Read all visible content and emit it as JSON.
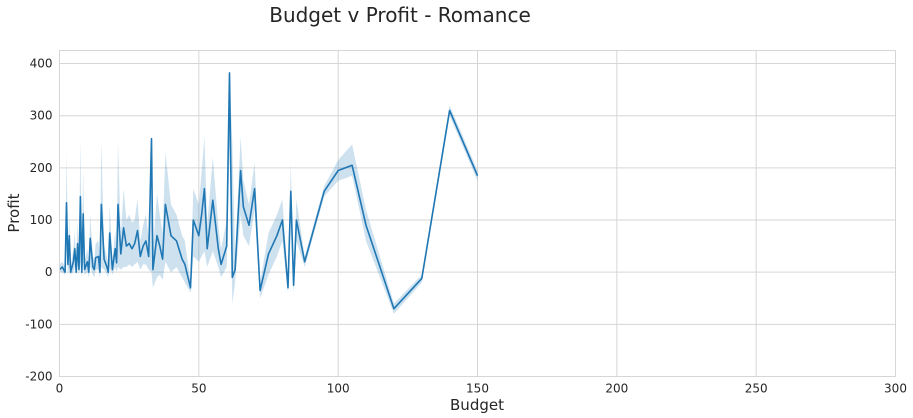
{
  "chart_data": {
    "type": "line",
    "title": "Budget v Profit - Romance",
    "xlabel": "Budget",
    "ylabel": "Profit",
    "xlim": [
      0,
      300
    ],
    "ylim": [
      -200,
      425
    ],
    "xticks": [
      0,
      50,
      100,
      150,
      200,
      250,
      300
    ],
    "yticks": [
      -200,
      -100,
      0,
      100,
      200,
      300,
      400
    ],
    "grid": true,
    "colors": {
      "line": "#1f77b4",
      "band": "#1f77b4"
    },
    "series": [
      {
        "name": "Profit",
        "x": [
          0,
          1,
          2,
          2.5,
          3,
          3.5,
          4,
          5,
          5.5,
          6,
          6.5,
          7,
          7.5,
          8,
          8.5,
          9,
          10,
          10.5,
          11,
          12,
          12.5,
          13,
          14,
          14.5,
          15,
          16,
          17,
          17.5,
          18,
          19,
          20,
          20.5,
          21,
          22,
          23,
          24,
          25,
          26,
          27,
          28,
          29,
          30,
          31,
          32,
          33,
          33.5,
          35,
          36,
          37,
          38,
          40,
          42,
          44,
          45,
          47,
          48,
          50,
          51,
          52,
          53,
          55,
          57,
          58,
          60,
          61,
          62,
          63,
          65,
          66,
          68,
          70,
          72,
          75,
          78,
          80,
          82,
          83,
          84,
          85,
          88,
          95,
          100,
          105,
          110,
          120,
          130,
          140,
          150
        ],
        "y": [
          5,
          10,
          0,
          133,
          15,
          70,
          0,
          20,
          45,
          0,
          55,
          5,
          145,
          0,
          112,
          5,
          20,
          0,
          65,
          10,
          5,
          28,
          30,
          0,
          130,
          25,
          10,
          0,
          75,
          5,
          45,
          18,
          130,
          35,
          85,
          50,
          55,
          45,
          55,
          80,
          30,
          50,
          60,
          30,
          256,
          5,
          70,
          50,
          25,
          130,
          70,
          60,
          25,
          15,
          -30,
          100,
          70,
          110,
          160,
          45,
          138,
          45,
          15,
          50,
          382,
          -10,
          5,
          195,
          125,
          90,
          160,
          -35,
          35,
          70,
          100,
          -30,
          155,
          -25,
          100,
          20,
          155,
          195,
          205,
          90,
          -70,
          -12,
          310,
          185
        ],
        "lower": [
          0,
          0,
          -5,
          50,
          -5,
          10,
          -5,
          0,
          10,
          -5,
          15,
          -5,
          20,
          -10,
          20,
          -5,
          0,
          -10,
          10,
          -5,
          -10,
          5,
          5,
          -10,
          10,
          5,
          -5,
          -10,
          10,
          -5,
          10,
          0,
          10,
          5,
          10,
          10,
          15,
          10,
          15,
          20,
          5,
          15,
          15,
          5,
          0,
          -30,
          -10,
          -5,
          -15,
          20,
          0,
          10,
          -10,
          -20,
          -40,
          30,
          20,
          30,
          40,
          10,
          40,
          10,
          -10,
          10,
          240,
          -60,
          -20,
          110,
          70,
          50,
          120,
          -50,
          -5,
          30,
          60,
          -40,
          100,
          -40,
          60,
          10,
          145,
          175,
          185,
          60,
          -80,
          -20,
          300,
          175
        ],
        "upper": [
          15,
          20,
          10,
          230,
          35,
          110,
          10,
          45,
          80,
          10,
          100,
          25,
          255,
          15,
          200,
          20,
          45,
          15,
          110,
          30,
          25,
          55,
          60,
          15,
          250,
          50,
          30,
          15,
          130,
          20,
          80,
          35,
          250,
          70,
          160,
          100,
          110,
          95,
          100,
          140,
          60,
          90,
          110,
          65,
          256,
          40,
          150,
          110,
          75,
          230,
          130,
          110,
          70,
          60,
          -20,
          160,
          130,
          190,
          260,
          90,
          220,
          90,
          45,
          100,
          382,
          250,
          30,
          260,
          175,
          130,
          210,
          -20,
          75,
          110,
          140,
          -20,
          210,
          -10,
          140,
          30,
          165,
          215,
          245,
          120,
          -60,
          -5,
          320,
          195
        ]
      }
    ]
  }
}
